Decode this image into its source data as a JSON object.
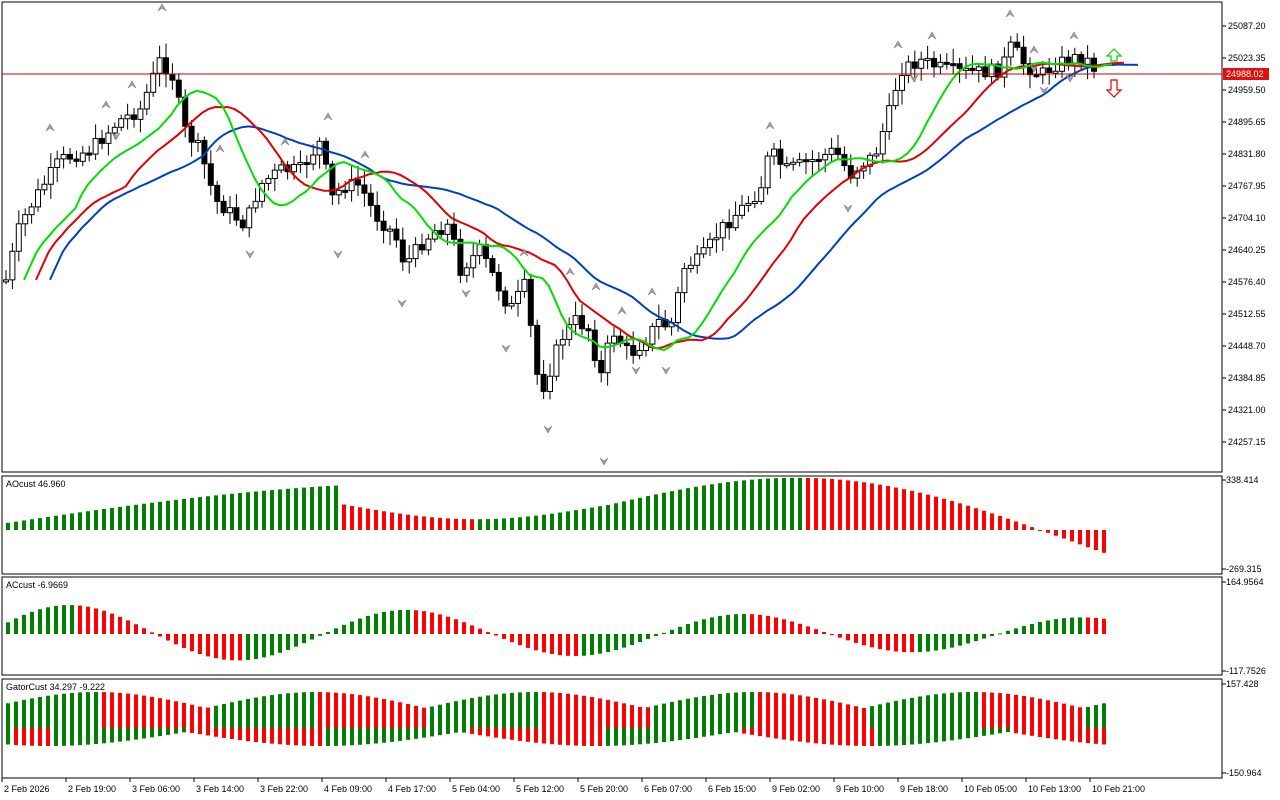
{
  "main": {
    "y_ticks": [
      "25087.20",
      "25023.35",
      "24959.50",
      "24895.65",
      "24831.80",
      "24767.95",
      "24704.10",
      "24640.25",
      "24576.40",
      "24512.55",
      "24448.70",
      "24384.85",
      "24321.00",
      "24257.15"
    ],
    "current_price": "24988.02",
    "colors": {
      "price_line": "#c80000",
      "price_tag": "#e01010",
      "fast_ma": "#00e000",
      "mid_ma": "#e00000",
      "slow_ma": "#0040c0",
      "bull": "#ffffff",
      "bear": "#000000",
      "fractal": "#a0a0a0"
    }
  },
  "panes": [
    {
      "name": "ao",
      "label": "AOcust 46.960",
      "top_value": "338.414",
      "bottom_value": "-269.315"
    },
    {
      "name": "ac",
      "label": "ACcust -6.9669",
      "top_value": "164.9564",
      "bottom_value": "-117.7526"
    },
    {
      "name": "gator",
      "label": "GatorCust 34.297 -9.222",
      "top_value": "157.428",
      "bottom_value": "-150.964"
    }
  ],
  "x_ticks": [
    "2 Feb 2026",
    "2 Feb 19:00",
    "3 Feb 06:00",
    "3 Feb 14:00",
    "3 Feb 22:00",
    "4 Feb 09:00",
    "4 Feb 17:00",
    "5 Feb 04:00",
    "5 Feb 12:00",
    "5 Feb 20:00",
    "6 Feb 07:00",
    "6 Feb 15:00",
    "9 Feb 02:00",
    "9 Feb 10:00",
    "9 Feb 18:00",
    "10 Feb 05:00",
    "10 Feb 13:00",
    "10 Feb 21:00"
  ],
  "hist_colors": {
    "up": "#008000",
    "down": "#ff0000"
  }
}
